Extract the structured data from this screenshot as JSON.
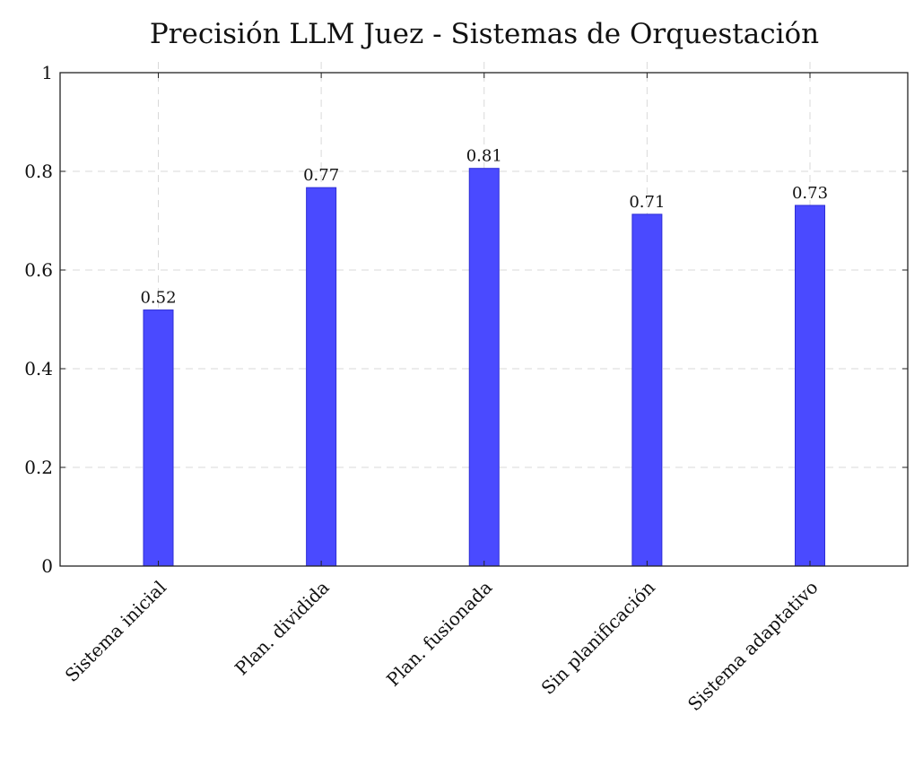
{
  "chart_data": {
    "type": "bar",
    "title": "Precisión LLM Juez - Sistemas de Orquestación",
    "xlabel": "",
    "ylabel": "",
    "categories": [
      "Sistema inicial",
      "Plan. dividida",
      "Plan. fusionada",
      "Sin planificación",
      "Sistema adaptativo"
    ],
    "values": [
      0.519,
      0.767,
      0.806,
      0.713,
      0.731
    ],
    "data_labels": [
      "0.52",
      "0.77",
      "0.81",
      "0.71",
      "0.73"
    ],
    "ylim": [
      0,
      1
    ],
    "y_ticks": [
      0,
      0.2,
      0.4,
      0.6,
      0.8,
      1
    ],
    "y_tick_labels": [
      "0",
      "0.2",
      "0.4",
      "0.6",
      "0.8",
      "1"
    ],
    "grid": true,
    "legend": "none",
    "colors": {
      "bar_fill": "#4a4aff",
      "bar_stroke": "#2e2ed6",
      "grid": "#d9d9d9",
      "axis": "#222222"
    }
  }
}
